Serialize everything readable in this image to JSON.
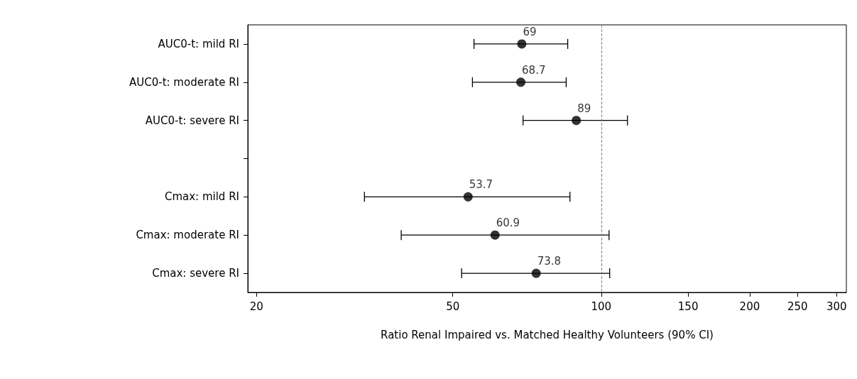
{
  "chart_data": {
    "type": "scatter",
    "orientation": "horizontal",
    "xlabel": "Ratio Renal Impaired vs. Matched Healthy Volunteers (90% CI)",
    "categories": [
      "AUC0-t: mild RI",
      "AUC0-t: moderate RI",
      "AUC0-t: severe RI",
      null,
      "Cmax: mild RI",
      "Cmax: moderate RI",
      "Cmax: severe RI"
    ],
    "values": [
      69,
      68.7,
      89,
      null,
      53.7,
      60.9,
      73.8
    ],
    "errors": [
      [
        55.2,
        85.5
      ],
      [
        54.8,
        84.9
      ],
      [
        69.4,
        113
      ],
      null,
      [
        33.1,
        86.4
      ],
      [
        39.3,
        103.7
      ],
      [
        52.1,
        104
      ]
    ],
    "color": "#000000",
    "marker": "circle",
    "data_labels": true,
    "log": "x",
    "grid": false,
    "xlim": [
      19.2,
      314
    ],
    "xticks": [
      20,
      50,
      100,
      150,
      200,
      250,
      300
    ],
    "ref_lines": [
      {
        "axis": "x",
        "value": 100,
        "color": "#808080",
        "line_style": "dashed"
      }
    ]
  }
}
